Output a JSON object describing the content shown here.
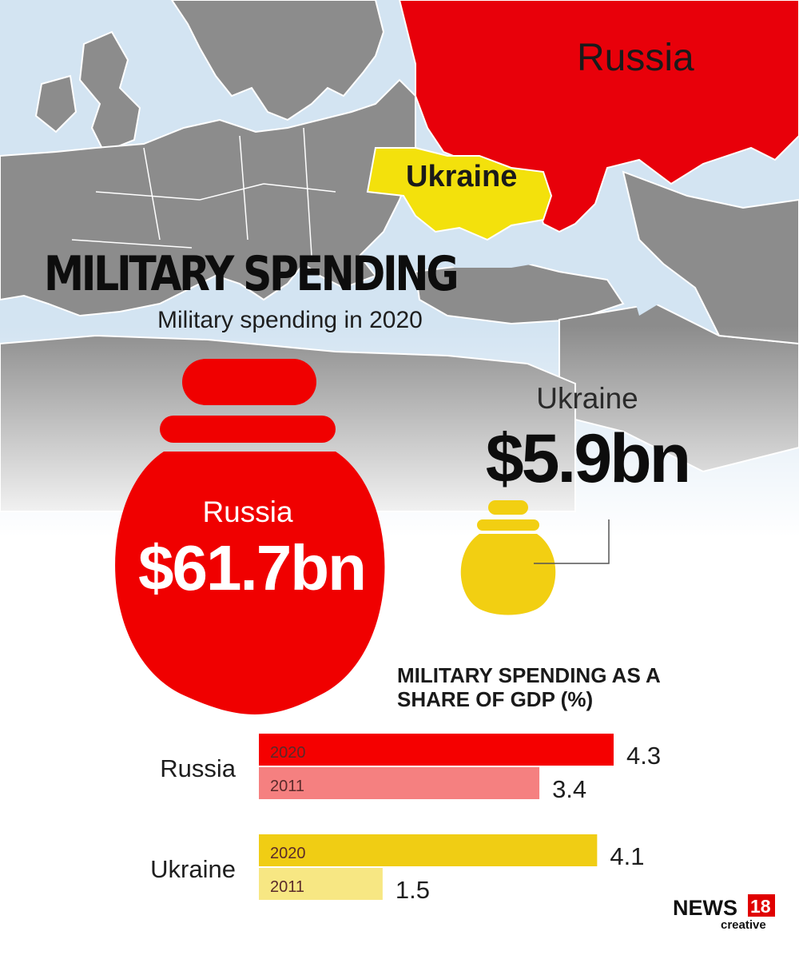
{
  "map": {
    "labels": {
      "russia": "Russia",
      "ukraine": "Ukraine"
    },
    "colors": {
      "russia": "#e8000a",
      "ukraine": "#f3e10c",
      "land": "#8c8c8c",
      "sea": "#d3e4f2"
    }
  },
  "headline": "MILITARY SPENDING",
  "subtitle": "Military spending in 2020",
  "spending": {
    "russia": {
      "name": "Russia",
      "value": "$61.7bn",
      "color": "#f00000"
    },
    "ukraine": {
      "name": "Ukraine",
      "value": "$5.9bn",
      "color": "#f2cf12"
    }
  },
  "chart_data": {
    "type": "bar",
    "title": "MILITARY SPENDING AS A SHARE OF GDP (%)",
    "title_lines": [
      "MILITARY SPENDING AS A",
      "SHARE OF GDP (%)"
    ],
    "orientation": "horizontal",
    "categories": [
      "Russia",
      "Ukraine"
    ],
    "series": [
      {
        "name": "2020",
        "values": [
          4.3,
          4.1
        ]
      },
      {
        "name": "2011",
        "values": [
          3.4,
          1.5
        ]
      }
    ],
    "bar_labels": [
      "2020",
      "2011"
    ],
    "value_labels": [
      [
        "4.3",
        "3.4"
      ],
      [
        "4.1",
        "1.5"
      ]
    ],
    "colors": [
      [
        "#f50000",
        "#f58080"
      ],
      [
        "#f0cd14",
        "#f7e783"
      ]
    ],
    "xlim": [
      0,
      4.3
    ],
    "grid": false
  },
  "logo": {
    "brand": "NEWS",
    "number": "18",
    "tagline": "creative"
  }
}
